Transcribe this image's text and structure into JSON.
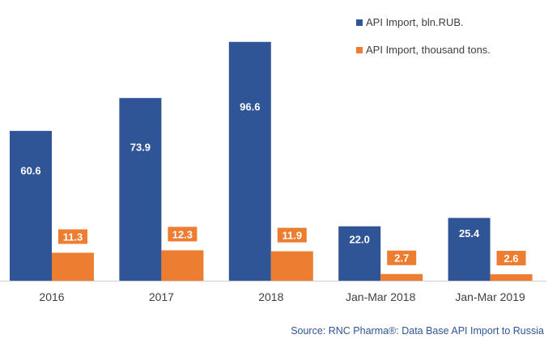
{
  "chart_data": {
    "type": "bar",
    "categories": [
      "2016",
      "2017",
      "2018",
      "Jan-Mar 2018",
      "Jan-Mar 2019"
    ],
    "series": [
      {
        "name": "API Import, bln.RUB.",
        "values": [
          60.6,
          73.9,
          96.6,
          22.0,
          25.4
        ],
        "labels": [
          "60.6",
          "73.9",
          "96.6",
          "22.0",
          "25.4"
        ],
        "color": "#2f5597"
      },
      {
        "name": "API Import, thousand tons.",
        "values": [
          11.3,
          12.3,
          11.9,
          2.7,
          2.6
        ],
        "labels": [
          "11.3",
          "12.3",
          "11.9",
          "2.7",
          "2.6"
        ],
        "color": "#ed7d31"
      }
    ],
    "ylim": [
      0,
      107
    ],
    "grid": false,
    "legend_position": "top-right",
    "source": "Source: RNC Pharma®: Data Base API Import to Russia"
  }
}
